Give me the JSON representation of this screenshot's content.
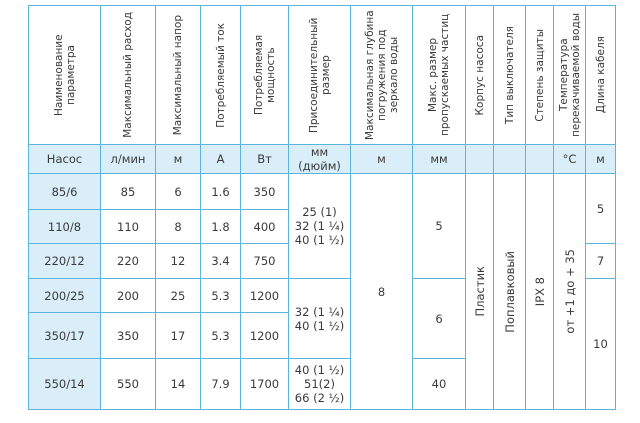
{
  "table": {
    "headers": [
      "Наименование параметра",
      "Максимальный расход",
      "Максимальный напор",
      "Потребляемый ток",
      "Потребляемая мощность",
      "Присоединительный размер",
      "Максимальная глубина погружения под зеркало воды",
      "Макс. размер пропускаемых частиц",
      "Корпус насоса",
      "Тип выключателя",
      "Степень защиты",
      "Температура перекачиваемой воды",
      "Длина кабеля"
    ],
    "units": [
      "Насос",
      "л/мин",
      "м",
      "А",
      "Вт",
      "мм (дюйм)",
      "м",
      "мм",
      "°С",
      "м"
    ],
    "rows": [
      [
        "85/6",
        "85",
        "6",
        "1.6",
        "350"
      ],
      [
        "110/8",
        "110",
        "8",
        "1.8",
        "400"
      ],
      [
        "220/12",
        "220",
        "12",
        "3.4",
        "750"
      ],
      [
        "200/25",
        "200",
        "25",
        "5.3",
        "1200"
      ],
      [
        "350/17",
        "350",
        "17",
        "5.3",
        "1200"
      ],
      [
        "550/14",
        "550",
        "14",
        "7.9",
        "1700"
      ]
    ],
    "connection_sizes": [
      [
        "25 (1)",
        "32 (1 ¼)",
        "40 (1 ½)"
      ],
      [
        "32 (1 ¼)",
        "40 (1 ½)"
      ],
      [
        "40 (1 ½)",
        "51(2)",
        "66 (2 ½)"
      ]
    ],
    "immersion_depth": "8",
    "particle_sizes": [
      "5",
      "6",
      "40"
    ],
    "housing": "Пластик",
    "switch_type": "Поплавковый",
    "protection": "IPX 8",
    "water_temperature": "от +1 до + 35",
    "cable_lengths": [
      "5",
      "7",
      "10"
    ]
  }
}
